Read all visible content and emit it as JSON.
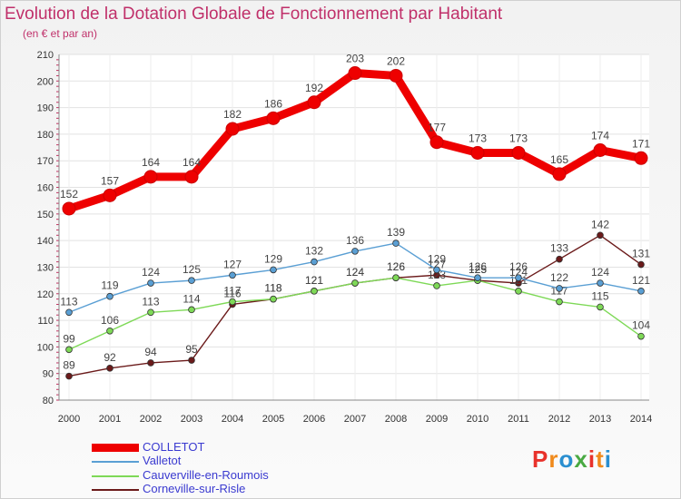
{
  "title": "Evolution de la Dotation Globale de Fonctionnement par Habitant",
  "subtitle": "(en € et par an)",
  "brand": {
    "text": "Proxiti",
    "colors": [
      "#e8322b",
      "#f08a1c",
      "#2a8fd0",
      "#49a942",
      "#e8322b",
      "#f08a1c",
      "#2a8fd0"
    ]
  },
  "chart_data": {
    "type": "line",
    "title": "Evolution de la Dotation Globale de Fonctionnement par Habitant",
    "subtitle": "(en € et par an)",
    "xlabel": "",
    "ylabel": "",
    "ylim": [
      80,
      210
    ],
    "yticks": [
      80,
      90,
      100,
      110,
      120,
      130,
      140,
      150,
      160,
      170,
      180,
      190,
      200,
      210
    ],
    "grid": true,
    "categories": [
      "2000",
      "2001",
      "2002",
      "2003",
      "2004",
      "2005",
      "2006",
      "2007",
      "2008",
      "2009",
      "2010",
      "2011",
      "2012",
      "2013",
      "2014"
    ],
    "series": [
      {
        "name": "Corneville-sur-Risle",
        "color": "#6b1a1a",
        "values": [
          89,
          92,
          94,
          95,
          116,
          118,
          121,
          124,
          126,
          127,
          125,
          124,
          133,
          142,
          131
        ]
      },
      {
        "name": "Cauverville-en-Roumois",
        "color": "#7ed957",
        "values": [
          99,
          106,
          113,
          114,
          117,
          118,
          121,
          124,
          126,
          123,
          125,
          121,
          117,
          115,
          104
        ]
      },
      {
        "name": "Valletot",
        "color": "#5a9fd4",
        "values": [
          113,
          119,
          124,
          125,
          127,
          129,
          132,
          136,
          139,
          129,
          126,
          126,
          122,
          124,
          121
        ]
      },
      {
        "name": "COLLETOT",
        "color": "#ee0000",
        "values": [
          152,
          157,
          164,
          164,
          182,
          186,
          192,
          203,
          202,
          177,
          173,
          173,
          165,
          174,
          171
        ]
      }
    ],
    "legend": [
      "COLLETOT",
      "Valletot",
      "Cauverville-en-Roumois",
      "Corneville-sur-Risle"
    ]
  }
}
